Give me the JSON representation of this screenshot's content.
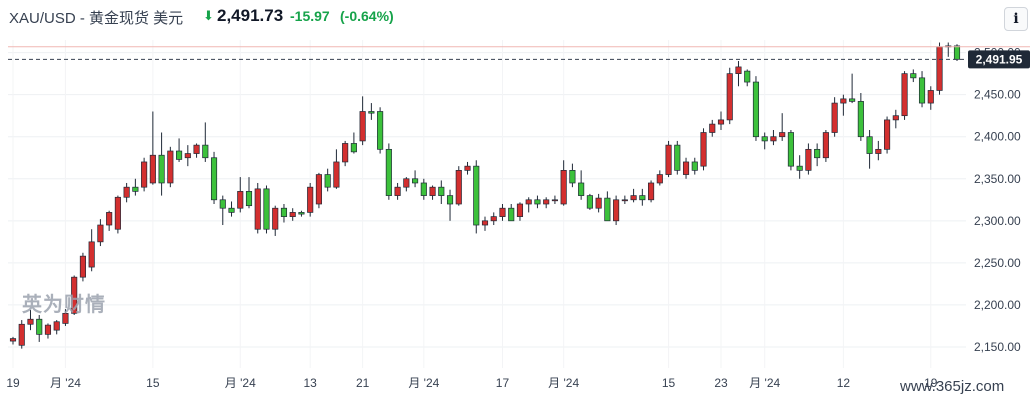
{
  "header": {
    "title": "XAU/USD - 黄金现货 美元",
    "arrow": "⬇",
    "price": "2,491.73",
    "change": "-15.97",
    "change_pct": "(-0.64%)",
    "info_label": "i",
    "down_color": "#16a34a",
    "up_color": "#dc2626"
  },
  "watermark": {
    "logo_text": "英为财情",
    "url": "www.365jz.com"
  },
  "chart_data": {
    "type": "candlestick",
    "ylim": [
      2125,
      2515
    ],
    "yticks": [
      "2,150.00",
      "2,200.00",
      "2,250.00",
      "2,300.00",
      "2,350.00",
      "2,400.00",
      "2,450.00",
      "2,500.00"
    ],
    "xtick_labels": [
      "19",
      "月 '24",
      "15",
      "月 '24",
      "13",
      "21",
      "月 '24",
      "17",
      "月 '24",
      "15",
      "23",
      "月 '24",
      "12",
      "19"
    ],
    "last_price_label": "2,491.95",
    "last_price": 2491.95,
    "reference_line": 2507,
    "up_color": "#d32f2f",
    "down_color": "#3cc13b",
    "candles": [
      [
        2157,
        2162,
        2153,
        2160
      ],
      [
        2152,
        2182,
        2148,
        2177
      ],
      [
        2177,
        2194,
        2170,
        2183
      ],
      [
        2183,
        2188,
        2156,
        2165
      ],
      [
        2165,
        2178,
        2160,
        2176
      ],
      [
        2170,
        2182,
        2165,
        2180
      ],
      [
        2178,
        2195,
        2175,
        2190
      ],
      [
        2190,
        2235,
        2188,
        2233
      ],
      [
        2233,
        2262,
        2228,
        2258
      ],
      [
        2245,
        2290,
        2240,
        2275
      ],
      [
        2275,
        2302,
        2270,
        2295
      ],
      [
        2295,
        2312,
        2288,
        2310
      ],
      [
        2290,
        2330,
        2285,
        2328
      ],
      [
        2328,
        2345,
        2322,
        2340
      ],
      [
        2340,
        2350,
        2330,
        2335
      ],
      [
        2340,
        2375,
        2335,
        2370
      ],
      [
        2345,
        2430,
        2343,
        2378
      ],
      [
        2378,
        2405,
        2330,
        2345
      ],
      [
        2345,
        2388,
        2340,
        2383
      ],
      [
        2383,
        2398,
        2370,
        2373
      ],
      [
        2375,
        2390,
        2365,
        2380
      ],
      [
        2380,
        2392,
        2375,
        2390
      ],
      [
        2390,
        2417,
        2370,
        2375
      ],
      [
        2375,
        2382,
        2320,
        2325
      ],
      [
        2325,
        2330,
        2295,
        2315
      ],
      [
        2315,
        2323,
        2305,
        2310
      ],
      [
        2315,
        2352,
        2310,
        2335
      ],
      [
        2335,
        2352,
        2315,
        2318
      ],
      [
        2290,
        2345,
        2285,
        2338
      ],
      [
        2338,
        2342,
        2285,
        2290
      ],
      [
        2290,
        2318,
        2282,
        2315
      ],
      [
        2315,
        2320,
        2298,
        2305
      ],
      [
        2305,
        2315,
        2300,
        2310
      ],
      [
        2310,
        2312,
        2305,
        2308
      ],
      [
        2310,
        2345,
        2305,
        2340
      ],
      [
        2320,
        2357,
        2315,
        2355
      ],
      [
        2355,
        2362,
        2335,
        2340
      ],
      [
        2340,
        2385,
        2338,
        2370
      ],
      [
        2370,
        2395,
        2365,
        2392
      ],
      [
        2392,
        2405,
        2380,
        2382
      ],
      [
        2395,
        2448,
        2390,
        2430
      ],
      [
        2430,
        2440,
        2420,
        2428
      ],
      [
        2430,
        2435,
        2380,
        2385
      ],
      [
        2385,
        2392,
        2325,
        2330
      ],
      [
        2330,
        2345,
        2325,
        2340
      ],
      [
        2340,
        2352,
        2335,
        2350
      ],
      [
        2350,
        2360,
        2340,
        2345
      ],
      [
        2345,
        2350,
        2325,
        2330
      ],
      [
        2330,
        2342,
        2325,
        2340
      ],
      [
        2340,
        2348,
        2320,
        2330
      ],
      [
        2330,
        2337,
        2300,
        2320
      ],
      [
        2320,
        2365,
        2318,
        2360
      ],
      [
        2360,
        2370,
        2355,
        2365
      ],
      [
        2365,
        2372,
        2285,
        2295
      ],
      [
        2295,
        2305,
        2288,
        2300
      ],
      [
        2300,
        2310,
        2295,
        2305
      ],
      [
        2305,
        2320,
        2300,
        2315
      ],
      [
        2315,
        2320,
        2300,
        2300
      ],
      [
        2305,
        2322,
        2300,
        2320
      ],
      [
        2320,
        2328,
        2310,
        2325
      ],
      [
        2325,
        2330,
        2315,
        2320
      ],
      [
        2320,
        2328,
        2315,
        2325
      ],
      [
        2325,
        2330,
        2320,
        2325
      ],
      [
        2320,
        2372,
        2318,
        2360
      ],
      [
        2360,
        2368,
        2340,
        2345
      ],
      [
        2345,
        2360,
        2325,
        2330
      ],
      [
        2330,
        2332,
        2313,
        2315
      ],
      [
        2315,
        2332,
        2310,
        2327
      ],
      [
        2327,
        2335,
        2300,
        2300
      ],
      [
        2300,
        2330,
        2295,
        2325
      ],
      [
        2325,
        2330,
        2320,
        2325
      ],
      [
        2325,
        2338,
        2322,
        2330
      ],
      [
        2330,
        2338,
        2318,
        2325
      ],
      [
        2325,
        2348,
        2322,
        2345
      ],
      [
        2345,
        2360,
        2342,
        2355
      ],
      [
        2355,
        2395,
        2352,
        2390
      ],
      [
        2390,
        2395,
        2355,
        2360
      ],
      [
        2355,
        2375,
        2350,
        2370
      ],
      [
        2370,
        2375,
        2355,
        2360
      ],
      [
        2365,
        2410,
        2360,
        2405
      ],
      [
        2405,
        2420,
        2400,
        2415
      ],
      [
        2415,
        2430,
        2408,
        2420
      ],
      [
        2420,
        2482,
        2415,
        2475
      ],
      [
        2475,
        2490,
        2460,
        2483
      ],
      [
        2478,
        2480,
        2460,
        2465
      ],
      [
        2465,
        2472,
        2395,
        2400
      ],
      [
        2400,
        2405,
        2385,
        2395
      ],
      [
        2395,
        2408,
        2390,
        2400
      ],
      [
        2400,
        2428,
        2395,
        2405
      ],
      [
        2405,
        2408,
        2360,
        2365
      ],
      [
        2365,
        2378,
        2350,
        2360
      ],
      [
        2360,
        2392,
        2355,
        2385
      ],
      [
        2385,
        2392,
        2365,
        2375
      ],
      [
        2375,
        2408,
        2370,
        2405
      ],
      [
        2405,
        2447,
        2400,
        2440
      ],
      [
        2440,
        2450,
        2425,
        2445
      ],
      [
        2445,
        2475,
        2440,
        2442
      ],
      [
        2442,
        2452,
        2395,
        2400
      ],
      [
        2400,
        2408,
        2362,
        2380
      ],
      [
        2380,
        2395,
        2372,
        2385
      ],
      [
        2385,
        2424,
        2380,
        2420
      ],
      [
        2420,
        2432,
        2410,
        2425
      ],
      [
        2425,
        2478,
        2420,
        2475
      ],
      [
        2475,
        2480,
        2465,
        2470
      ],
      [
        2470,
        2478,
        2435,
        2440
      ],
      [
        2440,
        2460,
        2432,
        2455
      ],
      [
        2455,
        2512,
        2450,
        2507
      ],
      [
        2507,
        2512,
        2495,
        2508
      ],
      [
        2508,
        2510,
        2490,
        2492
      ]
    ]
  }
}
